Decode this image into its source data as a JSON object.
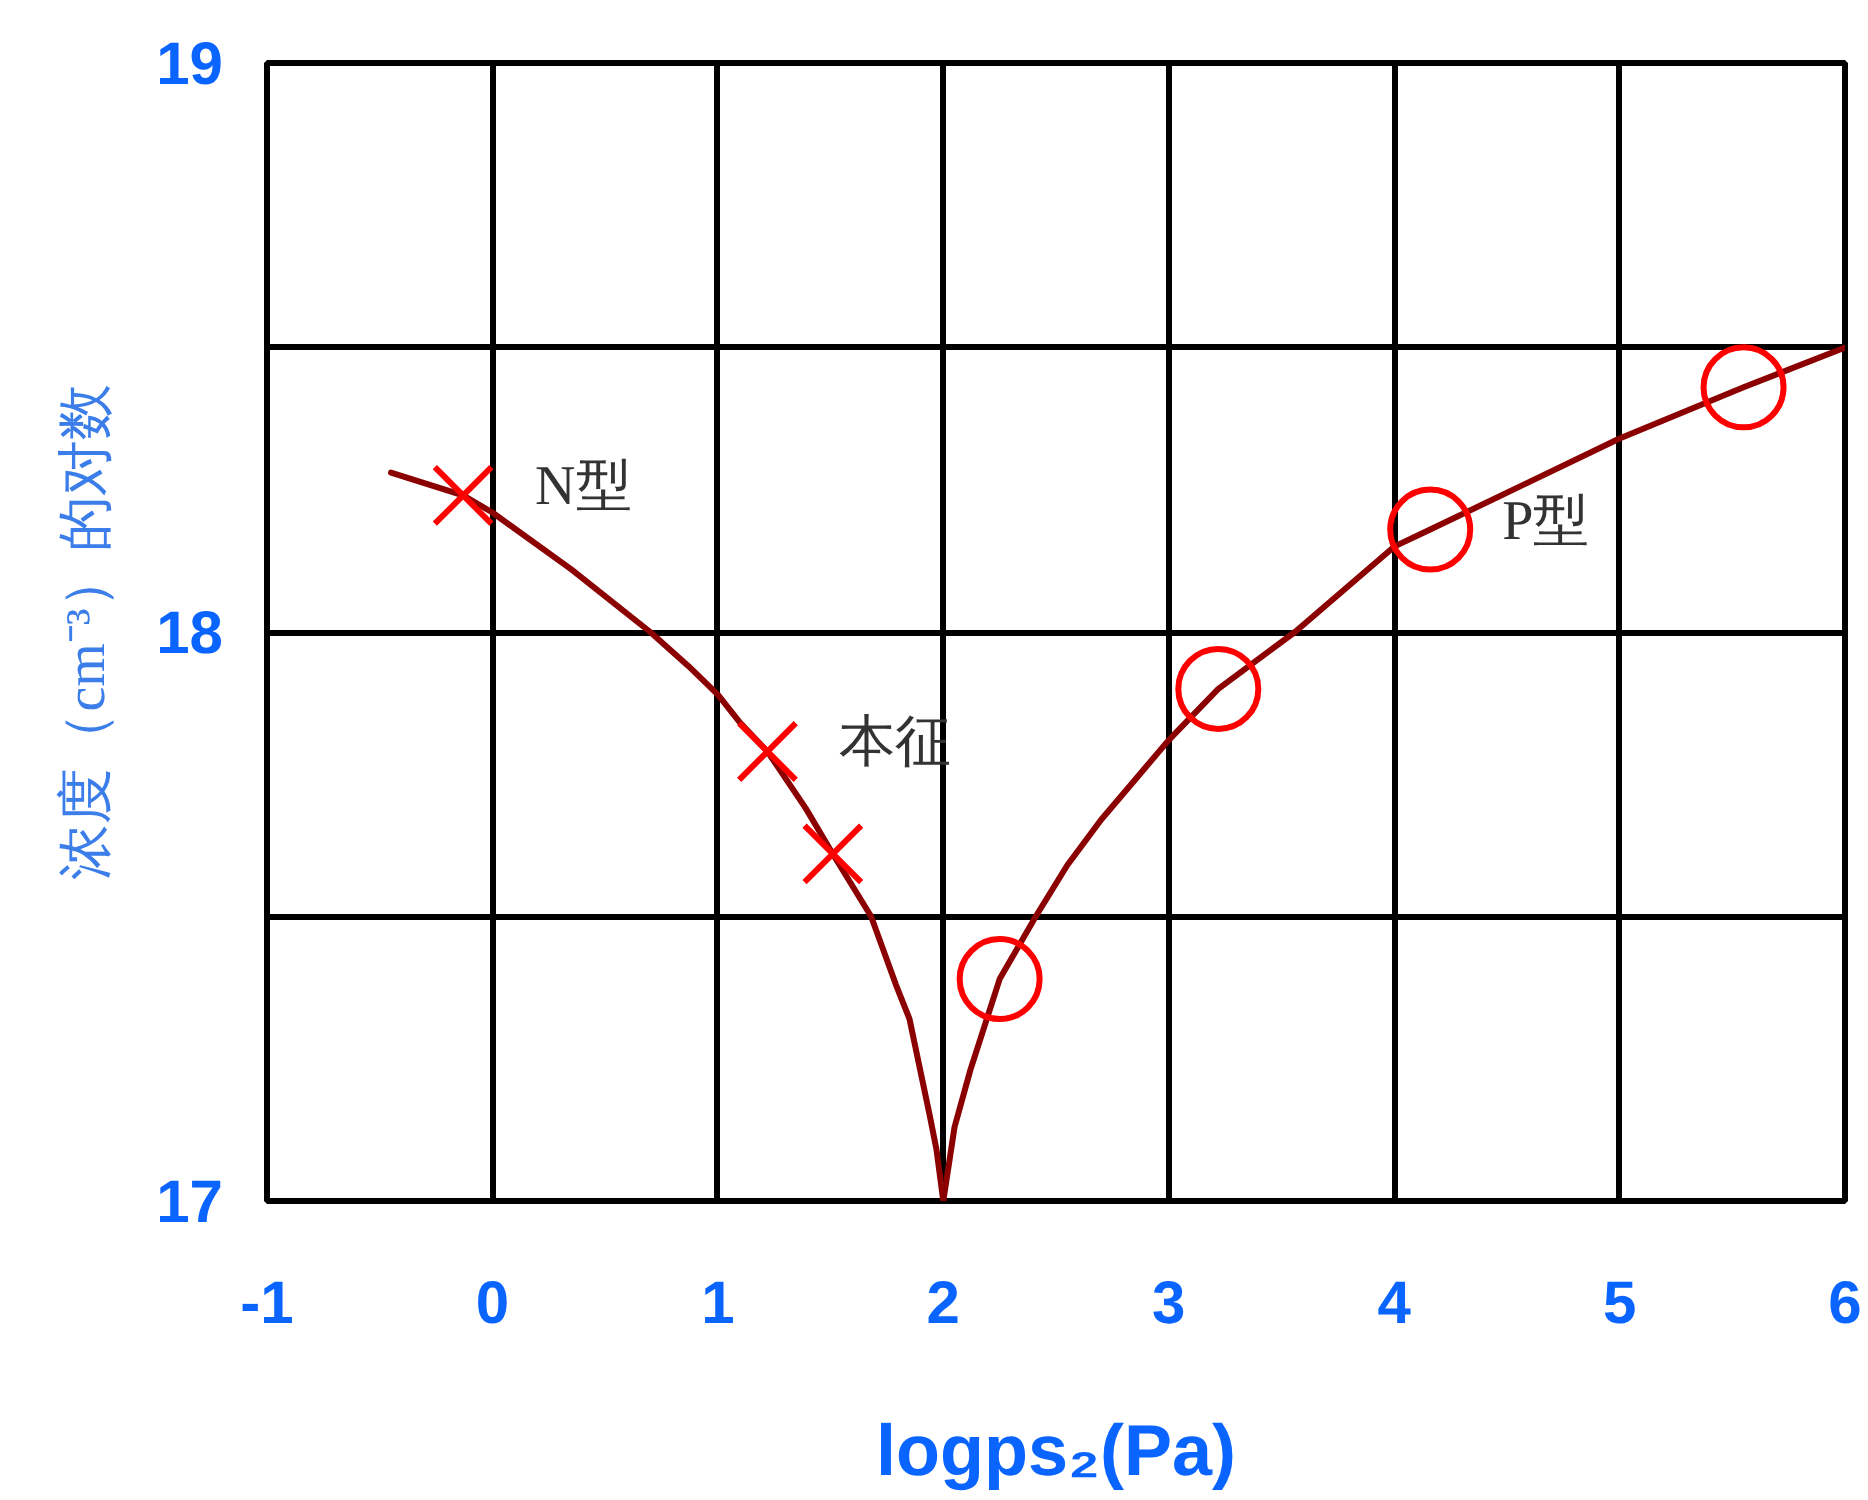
{
  "chart_data": {
    "type": "line",
    "xlabel": "logps₂(Pa)",
    "ylabel": "浓度（cm⁻³）的对数",
    "xlim": [
      -1,
      6
    ],
    "ylim": [
      17,
      19
    ],
    "xticks": [
      -1,
      0,
      1,
      2,
      3,
      4,
      5,
      6
    ],
    "yticks": [
      17,
      {
        "value": 17.5,
        "label": null
      },
      18,
      {
        "value": 18.5,
        "label": null
      },
      19
    ],
    "grid": true,
    "series": [
      {
        "color": "#8b0000",
        "marker": "none",
        "x": [
          -0.45,
          -0.13,
          0,
          0.35,
          0.7,
          0.87,
          1.0,
          1.1,
          1.22,
          1.39,
          1.51,
          1.68,
          1.79,
          1.85,
          1.94,
          1.97,
          2.0
        ],
        "values": [
          18.28,
          18.24,
          18.21,
          18.11,
          18.0,
          17.94,
          17.89,
          17.84,
          17.79,
          17.69,
          17.61,
          17.5,
          17.38,
          17.32,
          17.15,
          17.09,
          17.0
        ]
      },
      {
        "color": "#8b0000",
        "marker": "none",
        "x": [
          2.0,
          2.05,
          2.12,
          2.25,
          2.41,
          2.55,
          2.7,
          2.85,
          3.0,
          3.22,
          3.56,
          4.0,
          4.16,
          5.0,
          5.55,
          6.0
        ],
        "values": [
          17.0,
          17.13,
          17.23,
          17.39,
          17.5,
          17.59,
          17.67,
          17.74,
          17.81,
          17.9,
          18.0,
          18.15,
          18.18,
          18.34,
          18.43,
          18.5
        ]
      },
      {
        "type": "scatter",
        "color": "#ff0000",
        "marker": "cross",
        "x": [
          -0.13,
          1.22,
          1.51
        ],
        "values": [
          18.24,
          17.79,
          17.61
        ]
      },
      {
        "type": "scatter",
        "color": "#ff0000",
        "marker": "circle",
        "x": [
          2.25,
          3.22,
          4.16,
          5.55
        ],
        "values": [
          17.39,
          17.9,
          18.18,
          18.43
        ]
      }
    ],
    "annotations": [
      {
        "text": "N型",
        "x": -0.13,
        "y": 18.24
      },
      {
        "text": "本征",
        "x": 1.22,
        "y": 17.79
      },
      {
        "text": "P型",
        "x": 4.16,
        "y": 18.18
      }
    ]
  }
}
